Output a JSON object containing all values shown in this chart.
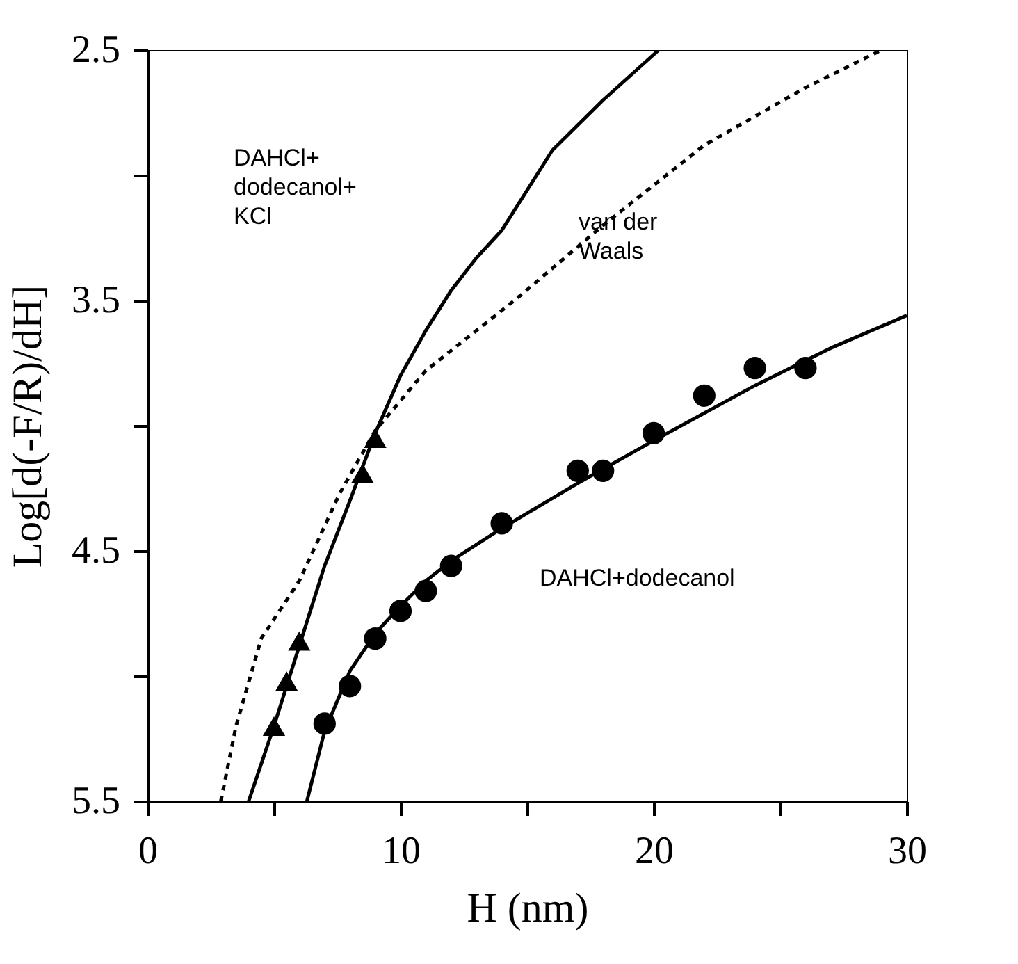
{
  "chart_data": {
    "type": "scatter",
    "xlabel": "H (nm)",
    "ylabel": "Log[d(-F/R)/dH]",
    "grid": false,
    "xlim": [
      0,
      30
    ],
    "ylim": [
      5.5,
      2.5
    ],
    "xticks": [
      0,
      {
        "value": 5,
        "label": null
      },
      10,
      {
        "value": 15,
        "label": null
      },
      20,
      {
        "value": 25,
        "label": null
      },
      30
    ],
    "yticks": [
      2.5,
      {
        "value": 3,
        "label": null
      },
      3.5,
      {
        "value": 4,
        "label": null
      },
      4.5,
      {
        "value": 5,
        "label": null
      },
      5.5
    ],
    "series": [
      {
        "type": "line",
        "color": "#000000",
        "line_style": "dashed",
        "x": [
          2.9,
          3.5,
          4.5,
          6,
          7.6,
          9,
          11,
          14.5,
          18,
          22,
          26,
          29
        ],
        "values": [
          5.5,
          5.2,
          4.85,
          4.62,
          4.27,
          4.02,
          3.78,
          3.5,
          3.2,
          2.88,
          2.65,
          2.5
        ]
      },
      {
        "type": "line",
        "color": "#000000",
        "line_style": "solid",
        "x": [
          4,
          5,
          6,
          7,
          8,
          9,
          10,
          11,
          12,
          13,
          14,
          16,
          18,
          20.2
        ],
        "values": [
          5.5,
          5.2,
          4.88,
          4.56,
          4.3,
          4.03,
          3.8,
          3.62,
          3.46,
          3.33,
          3.22,
          2.9,
          2.7,
          2.5
        ]
      },
      {
        "type": "line",
        "color": "#000000",
        "line_style": "solid",
        "x": [
          6.3,
          7,
          8,
          9,
          10,
          11,
          12,
          14,
          17,
          20,
          24,
          27,
          30
        ],
        "values": [
          5.5,
          5.22,
          4.98,
          4.83,
          4.72,
          4.62,
          4.54,
          4.41,
          4.23,
          4.06,
          3.84,
          3.69,
          3.56
        ]
      },
      {
        "color": "#000000",
        "marker": "triangle",
        "x": [
          5,
          5.5,
          6,
          8.5,
          9
        ],
        "values": [
          5.2,
          5.02,
          4.86,
          4.19,
          4.05
        ]
      },
      {
        "color": "#000000",
        "marker": "circle",
        "x": [
          7,
          8,
          9,
          10,
          11,
          12,
          14,
          17,
          18,
          20,
          22,
          24,
          26
        ],
        "values": [
          5.19,
          5.04,
          4.85,
          4.74,
          4.66,
          4.56,
          4.39,
          4.18,
          4.18,
          4.03,
          3.88,
          3.77,
          3.77
        ]
      }
    ],
    "annotations": [
      "DAHCl+\ndodecanol+\nKCl",
      "van der\nWaals",
      "DAHCl+dodecanol"
    ]
  }
}
